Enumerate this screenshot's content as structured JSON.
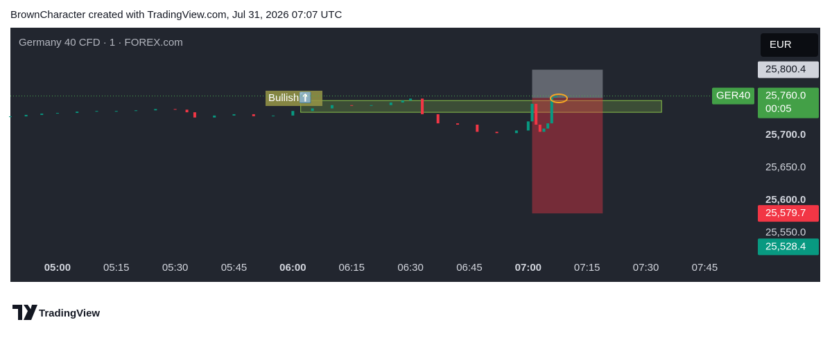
{
  "header": {
    "title": "BrownCharacter created with TradingView.com, Jul 31, 2026 07:07 UTC"
  },
  "chart_data": {
    "type": "candlestick",
    "title": "Germany 40 CFD · 1 · FOREX.com",
    "currency": "EUR",
    "x": [
      "04:48",
      "04:52",
      "04:56",
      "05:00",
      "05:05",
      "05:10",
      "05:15",
      "05:20",
      "05:25",
      "05:30",
      "05:33",
      "05:35",
      "05:40",
      "05:45",
      "05:50",
      "05:55",
      "06:00",
      "06:05",
      "06:10",
      "06:15",
      "06:20",
      "06:25",
      "06:28",
      "06:30",
      "06:33",
      "06:37",
      "06:42",
      "06:47",
      "06:52",
      "06:57",
      "07:00",
      "07:01",
      "07:02",
      "07:03",
      "07:04",
      "07:05",
      "07:06",
      "07:07"
    ],
    "values": [
      25728.7,
      25731,
      25733,
      25734,
      25736,
      25737,
      25737,
      25738,
      25740,
      25739,
      25735,
      25727,
      25730,
      25732,
      25729,
      25730,
      25737,
      25741,
      25746,
      25745,
      25746,
      25750,
      25753,
      25756,
      25732,
      25718,
      25716,
      25705,
      25703,
      25707,
      25721,
      25748,
      25716,
      25705,
      25710,
      25718,
      25758,
      25760
    ],
    "xlim": [
      "04:48",
      "07:58"
    ],
    "ylim": [
      25474.5,
      25864.9
    ],
    "xticks": [
      "05:00",
      "05:15",
      "05:30",
      "05:45",
      "06:00",
      "06:15",
      "06:30",
      "06:45",
      "07:00",
      "07:15",
      "07:30",
      "07:45"
    ],
    "yticks": [
      {
        "value": 25700,
        "label": "25,700.0"
      },
      {
        "value": 25650,
        "label": "25,650.0"
      },
      {
        "value": 25600,
        "label": "25,600.0"
      },
      {
        "value": 25550,
        "label": "25,550.0"
      }
    ],
    "zone": {
      "x": [
        "06:02",
        "07:34"
      ],
      "y": [
        25735,
        25753
      ],
      "label": "Bullish⬆️"
    },
    "position": {
      "x": [
        "07:01",
        "07:19"
      ],
      "entry": 25757,
      "target": {
        "value": 25800.4,
        "label": "25,800.4"
      },
      "stop": {
        "value": 25579.7,
        "label": "25,579.7"
      }
    },
    "last_price": {
      "value": 25760,
      "label": "25,760.0",
      "countdown": "00:05",
      "symbol": "GER40"
    },
    "low_label": {
      "value": 25528.4,
      "label": "25,528.4"
    }
  },
  "footer": {
    "brand": "TradingView"
  }
}
